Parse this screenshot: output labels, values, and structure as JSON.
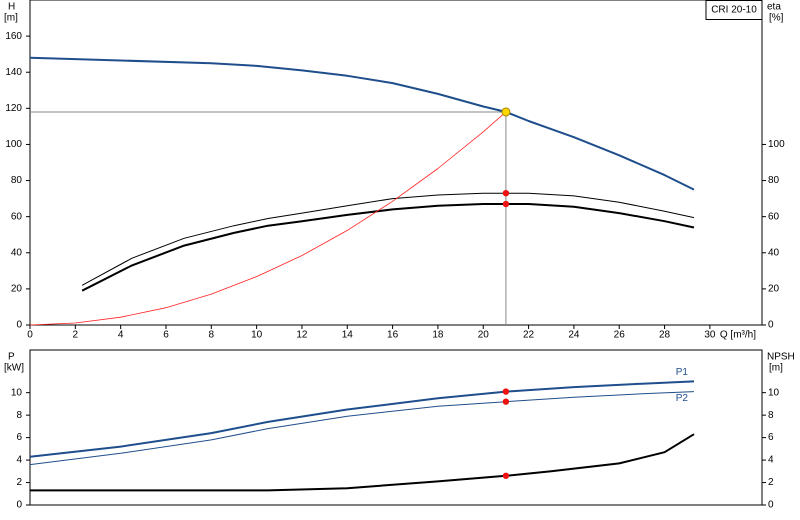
{
  "chart_data": [
    {
      "type": "line",
      "box_label": "CRI 20-10",
      "y_label": "H",
      "y_unit": "[m]",
      "y2_label": "eta",
      "y2_unit": "[%]",
      "x_label": "Q [m³/h]",
      "xlim": [
        0,
        32.3
      ],
      "xticks": [
        0,
        2,
        4,
        6,
        8,
        10,
        12,
        14,
        16,
        18,
        20,
        22,
        24,
        26,
        28,
        30
      ],
      "ylim": [
        0,
        180
      ],
      "yticks": [
        0,
        20,
        40,
        60,
        80,
        100,
        120,
        140,
        160
      ],
      "y2lim": [
        0,
        180
      ],
      "y2ticks": [
        0,
        20,
        40,
        60,
        80,
        100
      ],
      "series": [
        {
          "color": "#1f4e8c",
          "x": [
            0,
            4,
            8,
            10,
            12,
            14,
            16,
            18,
            20,
            21,
            22,
            24,
            26,
            28,
            29.3
          ],
          "values": [
            148,
            146.5,
            145,
            143.5,
            141,
            138,
            134,
            128,
            121,
            118,
            113,
            104,
            94,
            83,
            75
          ]
        },
        {
          "color": "#000000",
          "axis": "y2",
          "x": [
            2.3,
            4.5,
            6.8,
            9,
            10.5,
            12,
            14,
            16,
            18,
            20,
            21,
            22,
            24,
            26,
            28,
            29.3
          ],
          "values": [
            22,
            37,
            48,
            55,
            59,
            62,
            66,
            70,
            72,
            73,
            73,
            73,
            71.5,
            68,
            63,
            59.5
          ]
        },
        {
          "color": "#000000",
          "axis": "y2",
          "x": [
            2.3,
            4.5,
            6.8,
            9,
            10.5,
            12,
            14,
            16,
            18,
            20,
            21,
            22,
            24,
            26,
            28,
            29.3
          ],
          "values": [
            19,
            33,
            44,
            51,
            55,
            57.5,
            61,
            64,
            66,
            67,
            67,
            67,
            65.5,
            62,
            57.5,
            54
          ]
        },
        {
          "color": "#ff2020",
          "x": [
            0,
            2,
            4,
            6,
            8,
            10,
            12,
            14,
            16,
            18,
            20,
            21
          ],
          "values": [
            0,
            1.1,
            4.3,
            9.6,
            17.1,
            26.8,
            38.5,
            52.4,
            68.5,
            86.7,
            107,
            118
          ]
        }
      ],
      "points": [
        {
          "x": 21,
          "y": 118,
          "color": "#ffd700",
          "guide": true
        },
        {
          "x": 21,
          "y": 73,
          "color": "#ee1111"
        },
        {
          "x": 21,
          "y": 67,
          "color": "#ee1111"
        }
      ]
    },
    {
      "type": "line",
      "y_label": "P",
      "y_unit": "[kW]",
      "y2_label": "NPSH",
      "y2_unit": "[m]",
      "xlim": [
        0,
        32.3
      ],
      "ylim": [
        0,
        13.8
      ],
      "yticks": [
        0,
        2,
        4,
        6,
        8,
        10
      ],
      "y2lim": [
        0,
        13.8
      ],
      "y2ticks": [
        0,
        2,
        4,
        6,
        8,
        10
      ],
      "series": [
        {
          "name": "P1",
          "color": "#1f4e8c",
          "x": [
            0,
            4,
            8,
            10.5,
            14,
            18,
            21,
            24,
            27,
            29.3
          ],
          "values": [
            4.3,
            5.2,
            6.4,
            7.4,
            8.5,
            9.5,
            10.1,
            10.5,
            10.8,
            11
          ]
        },
        {
          "name": "P2",
          "color": "#1f4e8c",
          "x": [
            0,
            4,
            8,
            10.5,
            14,
            18,
            21,
            24,
            27,
            29.3
          ],
          "values": [
            3.6,
            4.6,
            5.8,
            6.8,
            7.9,
            8.8,
            9.2,
            9.6,
            9.9,
            10.1
          ]
        },
        {
          "color": "#000000",
          "axis": "y2",
          "x": [
            0,
            10.5,
            14,
            18,
            21,
            23,
            26,
            28,
            29.3
          ],
          "values": [
            1.3,
            1.3,
            1.5,
            2.1,
            2.6,
            3,
            3.7,
            4.7,
            6.3
          ]
        }
      ],
      "points": [
        {
          "x": 21,
          "y": 10.1,
          "color": "#ee1111"
        },
        {
          "x": 21,
          "y": 9.2,
          "color": "#ee1111"
        },
        {
          "x": 21,
          "y": 2.6,
          "color": "#ee1111"
        }
      ]
    }
  ]
}
